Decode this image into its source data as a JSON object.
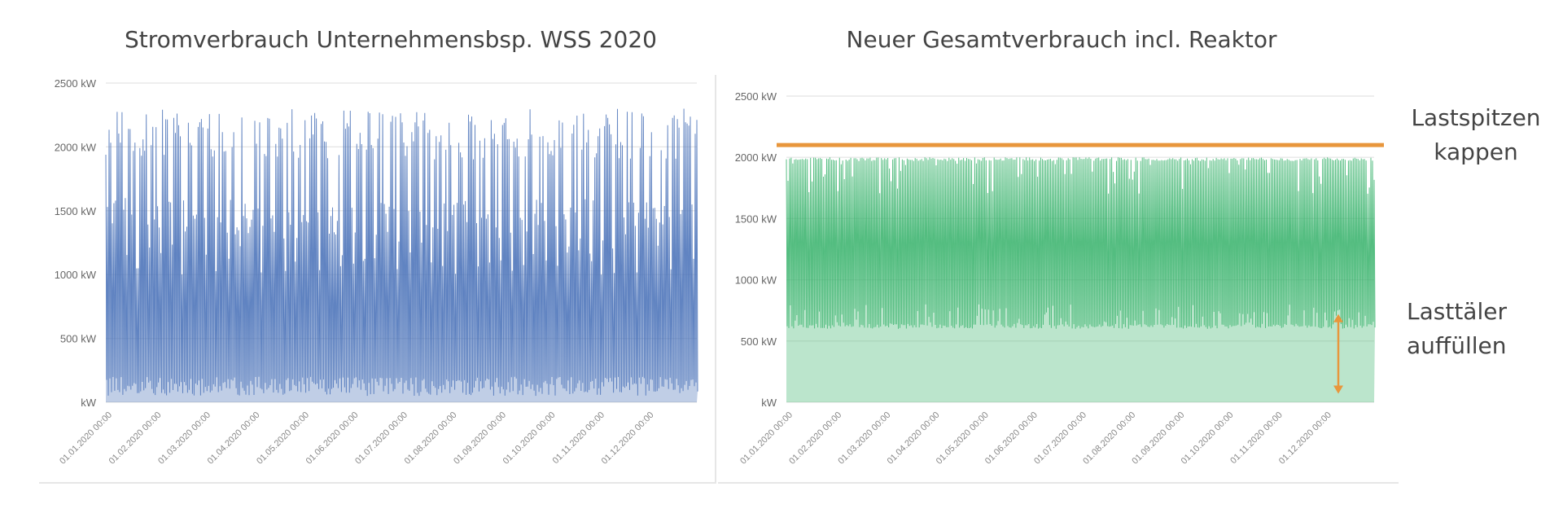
{
  "chart_data": [
    {
      "type": "area",
      "title": "Stromverbrauch Unternehmensbsp. WSS 2020",
      "xlabel": "",
      "ylabel": "",
      "ylim": [
        0,
        2500
      ],
      "y_ticks": [
        {
          "value": 2500,
          "label": "2500 kW"
        },
        {
          "value": 2000,
          "label": "2000 kW"
        },
        {
          "value": 1500,
          "label": "1500 kW"
        },
        {
          "value": 1000,
          "label": "1000 kW"
        },
        {
          "value": 500,
          "label": "500 kW"
        },
        {
          "value": 0,
          "label": "kW"
        }
      ],
      "x_ticks": [
        "01.01.2020 00:00",
        "01.02.2020 00:00",
        "01.03.2020 00:00",
        "01.04.2020 00:00",
        "01.05.2020 00:00",
        "01.06.2020 00:00",
        "01.07.2020 00:00",
        "01.08.2020 00:00",
        "01.09.2020 00:00",
        "01.10.2020 00:00",
        "01.11.2020 00:00",
        "01.12.2020 00:00"
      ],
      "series_pattern": {
        "peak_min": 1900,
        "peak_max": 2300,
        "base_min": 50,
        "base_max": 200,
        "shoulder": 1300,
        "period": "daily"
      },
      "grid": true,
      "color": "#4a72b8"
    },
    {
      "type": "area",
      "title": "Neuer Gesamtverbrauch incl. Reaktor",
      "xlabel": "",
      "ylabel": "",
      "ylim": [
        0,
        2500
      ],
      "y_ticks": [
        {
          "value": 2500,
          "label": "2500 kW"
        },
        {
          "value": 2000,
          "label": "2000 kW"
        },
        {
          "value": 1500,
          "label": "1500 kW"
        },
        {
          "value": 1000,
          "label": "1000 kW"
        },
        {
          "value": 500,
          "label": "500 kW"
        },
        {
          "value": 0,
          "label": "kW"
        }
      ],
      "x_ticks": [
        "01.01.2020 00:00",
        "01.02.2020 00:00",
        "01.03.2020 00:00",
        "01.04.2020 00:00",
        "01.05.2020 00:00",
        "01.06.2020 00:00",
        "01.07.2020 00:00",
        "01.08.2020 00:00",
        "01.09.2020 00:00",
        "01.10.2020 00:00",
        "01.11.2020 00:00",
        "01.12.2020 00:00"
      ],
      "series_pattern": {
        "cap": 2000,
        "floor": 600,
        "floor_max": 800,
        "period": "daily"
      },
      "cap_line": 2100,
      "grid": true,
      "color": "#3cb46e",
      "cap_color": "#e8963c"
    }
  ],
  "annotations": {
    "top": [
      "Lastspitzen",
      "kappen"
    ],
    "bottom": [
      "Lasttäler",
      "auffüllen"
    ]
  }
}
